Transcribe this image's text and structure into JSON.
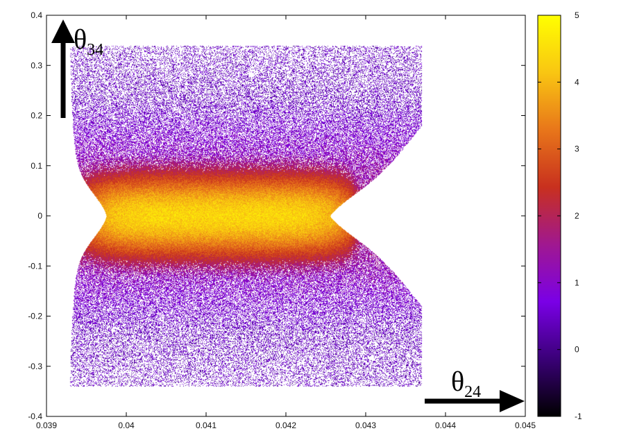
{
  "chart_data": {
    "type": "heatmap",
    "title": "",
    "xlabel": "θ",
    "xlabel_subscript": "24",
    "ylabel": "θ",
    "ylabel_subscript": "34",
    "xlim": [
      0.039,
      0.045
    ],
    "ylim": [
      -0.4,
      0.4
    ],
    "x_ticks": [
      "0.039",
      "0.04",
      "0.041",
      "0.042",
      "0.043",
      "0.044",
      "0.045"
    ],
    "x_tick_values": [
      0.039,
      0.04,
      0.041,
      0.042,
      0.043,
      0.044,
      0.045
    ],
    "y_ticks": [
      "-0.4",
      "-0.3",
      "-0.2",
      "-0.1",
      "0",
      "0.1",
      "0.2",
      "0.3",
      "0.4"
    ],
    "y_tick_values": [
      -0.4,
      -0.3,
      -0.2,
      -0.1,
      0,
      0.1,
      0.2,
      0.3,
      0.4
    ],
    "colorbar": {
      "range": [
        -1,
        5
      ],
      "ticks": [
        "5",
        "4",
        "3",
        "2",
        "1",
        "0",
        "-1"
      ],
      "tick_values": [
        5,
        4,
        3,
        2,
        1,
        0,
        -1
      ],
      "colors": [
        "#000000",
        "#3a0077",
        "#7a00e6",
        "#a01890",
        "#c8301e",
        "#e8761a",
        "#f9c612",
        "#ffff00"
      ]
    },
    "distribution": {
      "core_x_range": [
        0.0395,
        0.0428
      ],
      "core_y_range": [
        -0.1,
        0.1
      ],
      "peak_value": 4.4,
      "halo_x_range": [
        0.0393,
        0.0438
      ],
      "halo_y_range": [
        -0.34,
        0.34
      ]
    }
  }
}
